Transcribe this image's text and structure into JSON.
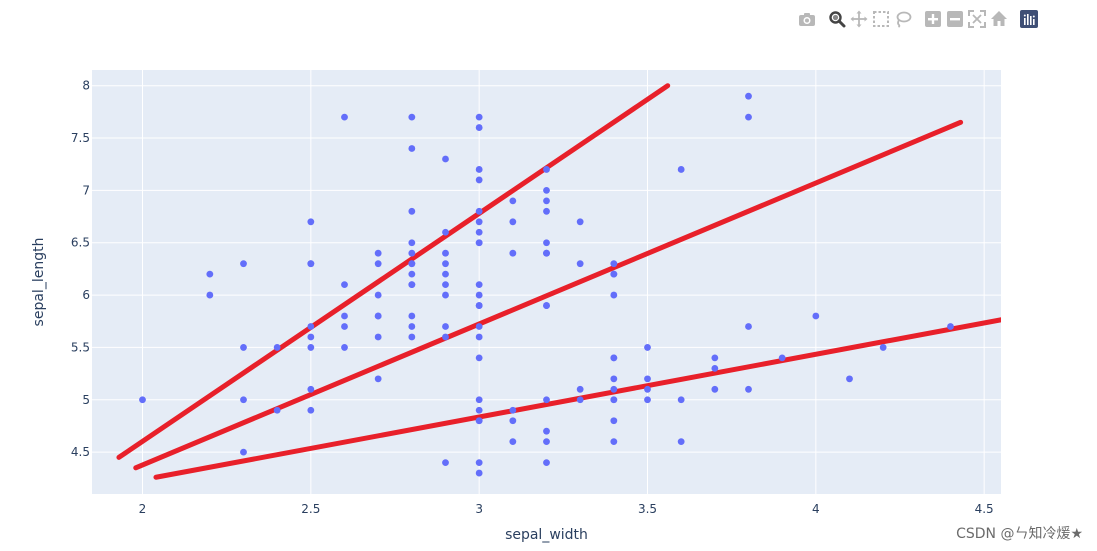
{
  "modebar": {
    "buttons": [
      {
        "name": "download-plot-icon"
      },
      {
        "name": "zoom-icon"
      },
      {
        "name": "pan-icon"
      },
      {
        "name": "box-select-icon"
      },
      {
        "name": "lasso-select-icon"
      },
      {
        "name": "zoom-in-icon"
      },
      {
        "name": "zoom-out-icon"
      },
      {
        "name": "autoscale-icon"
      },
      {
        "name": "reset-axes-icon"
      },
      {
        "name": "plotly-logo-icon"
      }
    ]
  },
  "watermark": "CSDN @ㄣ知冷煖★",
  "chart_data": {
    "type": "scatter",
    "title": "",
    "xlabel": "sepal_width",
    "ylabel": "sepal_length",
    "xlim": [
      1.85,
      4.55
    ],
    "ylim": [
      4.1,
      8.15
    ],
    "xticks": [
      2,
      2.5,
      3,
      3.5,
      4,
      4.5
    ],
    "xtick_labels": [
      "2",
      "2.5",
      "3",
      "3.5",
      "4",
      "4.5"
    ],
    "yticks": [
      4.5,
      5,
      5.5,
      6,
      6.5,
      7,
      7.5,
      8
    ],
    "ytick_labels": [
      "4.5",
      "5",
      "5.5",
      "6",
      "6.5",
      "7",
      "7.5",
      "8"
    ],
    "grid": true,
    "colors": {
      "plot_bg": "#e5ecf6",
      "grid": "#ffffff",
      "points": "#636efa",
      "lines": "#e8202a",
      "text": "#2a3f5f"
    },
    "series": [
      {
        "type": "scatter",
        "x": [
          2.0,
          2.2,
          2.2,
          2.3,
          2.3,
          2.3,
          2.3,
          2.4,
          2.4,
          2.5,
          2.5,
          2.5,
          2.5,
          2.5,
          2.5,
          2.5,
          2.5,
          2.6,
          2.6,
          2.6,
          2.6,
          2.6,
          2.7,
          2.7,
          2.7,
          2.7,
          2.7,
          2.7,
          2.7,
          2.8,
          2.8,
          2.8,
          2.8,
          2.8,
          2.8,
          2.8,
          2.8,
          2.8,
          2.8,
          2.8,
          2.8,
          2.8,
          2.9,
          2.9,
          2.9,
          2.9,
          2.9,
          2.9,
          2.9,
          2.9,
          2.9,
          2.9,
          3.0,
          3.0,
          3.0,
          3.0,
          3.0,
          3.0,
          3.0,
          3.0,
          3.0,
          3.0,
          3.0,
          3.0,
          3.0,
          3.0,
          3.0,
          3.0,
          3.0,
          3.0,
          3.0,
          3.0,
          3.0,
          3.0,
          3.1,
          3.1,
          3.1,
          3.1,
          3.1,
          3.1,
          3.2,
          3.2,
          3.2,
          3.2,
          3.2,
          3.2,
          3.2,
          3.2,
          3.2,
          3.2,
          3.2,
          3.2,
          3.2,
          3.3,
          3.3,
          3.3,
          3.3,
          3.4,
          3.4,
          3.4,
          3.4,
          3.4,
          3.4,
          3.4,
          3.4,
          3.4,
          3.4,
          3.4,
          3.4,
          3.5,
          3.5,
          3.5,
          3.5,
          3.6,
          3.6,
          3.6,
          3.7,
          3.7,
          3.7,
          3.8,
          3.8,
          3.8,
          3.8,
          3.9,
          4.0,
          4.1,
          4.2,
          4.4
        ],
        "y": [
          5.0,
          6.2,
          6.0,
          6.3,
          5.5,
          5.0,
          4.5,
          5.5,
          4.9,
          6.7,
          6.3,
          5.7,
          5.6,
          5.5,
          5.1,
          4.9,
          6.3,
          7.7,
          6.1,
          5.8,
          5.7,
          5.5,
          6.4,
          6.3,
          6.0,
          5.8,
          5.6,
          5.2,
          5.8,
          7.7,
          7.4,
          6.8,
          6.5,
          6.4,
          6.3,
          6.2,
          6.1,
          5.8,
          5.7,
          5.6,
          6.1,
          6.3,
          7.3,
          6.6,
          6.4,
          6.3,
          6.2,
          6.1,
          6.0,
          5.7,
          5.6,
          4.4,
          7.7,
          7.6,
          7.2,
          7.1,
          6.8,
          6.7,
          6.6,
          6.5,
          6.1,
          6.0,
          5.9,
          5.7,
          5.6,
          5.4,
          5.0,
          4.9,
          4.8,
          4.4,
          4.3,
          6.5,
          5.9,
          4.8,
          6.9,
          6.7,
          6.4,
          4.9,
          4.8,
          4.6,
          7.2,
          7.0,
          6.9,
          6.8,
          6.5,
          6.4,
          5.9,
          5.0,
          4.7,
          4.6,
          4.4,
          6.4,
          5.9,
          6.7,
          6.3,
          5.1,
          5.0,
          6.3,
          6.2,
          6.0,
          5.4,
          5.2,
          5.1,
          5.0,
          4.8,
          4.6,
          6.2,
          5.4,
          5.0,
          5.5,
          5.2,
          5.1,
          5.0,
          7.2,
          5.0,
          4.6,
          5.4,
          5.3,
          5.1,
          7.9,
          7.7,
          5.7,
          5.1,
          5.4,
          5.8,
          5.2,
          5.5,
          5.7
        ]
      },
      {
        "type": "line",
        "x": [
          1.93,
          3.56
        ],
        "y": [
          4.45,
          8.0
        ]
      },
      {
        "type": "line",
        "x": [
          1.98,
          4.43
        ],
        "y": [
          4.35,
          7.65
        ]
      },
      {
        "type": "line",
        "x": [
          2.04,
          4.56
        ],
        "y": [
          4.26,
          5.77
        ]
      }
    ]
  }
}
